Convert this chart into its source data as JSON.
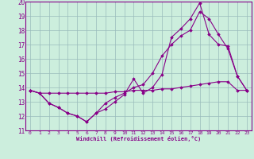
{
  "xlabel": "Windchill (Refroidissement éolien,°C)",
  "xlim": [
    -0.5,
    23.5
  ],
  "ylim": [
    11,
    20
  ],
  "xticks": [
    0,
    1,
    2,
    3,
    4,
    5,
    6,
    7,
    8,
    9,
    10,
    11,
    12,
    13,
    14,
    15,
    16,
    17,
    18,
    19,
    20,
    21,
    22,
    23
  ],
  "yticks": [
    11,
    12,
    13,
    14,
    15,
    16,
    17,
    18,
    19,
    20
  ],
  "bg_color": "#cceedd",
  "line_color": "#880088",
  "grid_color": "#99bbbb",
  "line1_x": [
    0,
    1,
    2,
    3,
    4,
    5,
    6,
    7,
    8,
    9,
    10,
    11,
    12,
    13,
    14,
    15,
    16,
    17,
    18,
    19,
    20,
    21,
    22,
    23
  ],
  "line1_y": [
    13.8,
    13.6,
    12.9,
    12.6,
    12.2,
    12.0,
    11.6,
    12.2,
    12.5,
    13.0,
    13.5,
    14.6,
    13.6,
    14.0,
    14.9,
    17.5,
    18.1,
    18.8,
    19.9,
    17.7,
    17.0,
    16.9,
    14.8,
    13.8
  ],
  "line2_x": [
    0,
    1,
    2,
    3,
    4,
    5,
    6,
    7,
    8,
    9,
    10,
    11,
    12,
    13,
    14,
    15,
    16,
    17,
    18,
    19,
    20,
    21,
    22,
    23
  ],
  "line2_y": [
    13.8,
    13.6,
    13.6,
    13.6,
    13.6,
    13.6,
    13.6,
    13.6,
    13.6,
    13.7,
    13.7,
    13.8,
    13.8,
    13.8,
    13.9,
    13.9,
    14.0,
    14.1,
    14.2,
    14.3,
    14.4,
    14.4,
    13.8,
    13.8
  ],
  "line3_x": [
    0,
    1,
    2,
    3,
    4,
    5,
    6,
    7,
    8,
    9,
    10,
    11,
    12,
    13,
    14,
    15,
    16,
    17,
    18,
    19,
    20,
    21,
    22,
    23
  ],
  "line3_y": [
    13.8,
    13.6,
    12.9,
    12.6,
    12.2,
    12.0,
    11.6,
    12.2,
    12.9,
    13.3,
    13.6,
    14.0,
    14.2,
    15.0,
    16.2,
    17.0,
    17.6,
    18.0,
    19.3,
    18.8,
    17.7,
    16.7,
    14.8,
    13.8
  ]
}
